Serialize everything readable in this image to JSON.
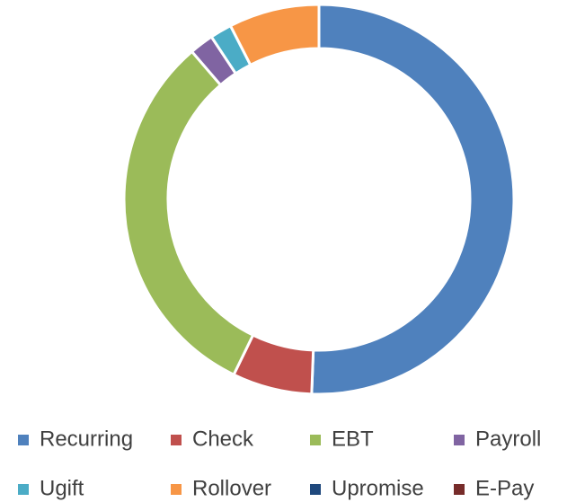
{
  "chart_data": {
    "type": "donut",
    "categories": [
      "Recurring",
      "Check",
      "EBT",
      "Payroll",
      "Ugift",
      "Rollover",
      "Upromise",
      "E-Pay"
    ],
    "values": [
      50.6,
      6.6,
      31.5,
      2,
      1.8,
      7.5,
      0,
      0
    ],
    "colors": [
      "#4f81bd",
      "#c0504d",
      "#9bbb59",
      "#8064a2",
      "#4bacc6",
      "#f79646",
      "#1f497d",
      "#772c2a"
    ],
    "legend": "bottom"
  }
}
